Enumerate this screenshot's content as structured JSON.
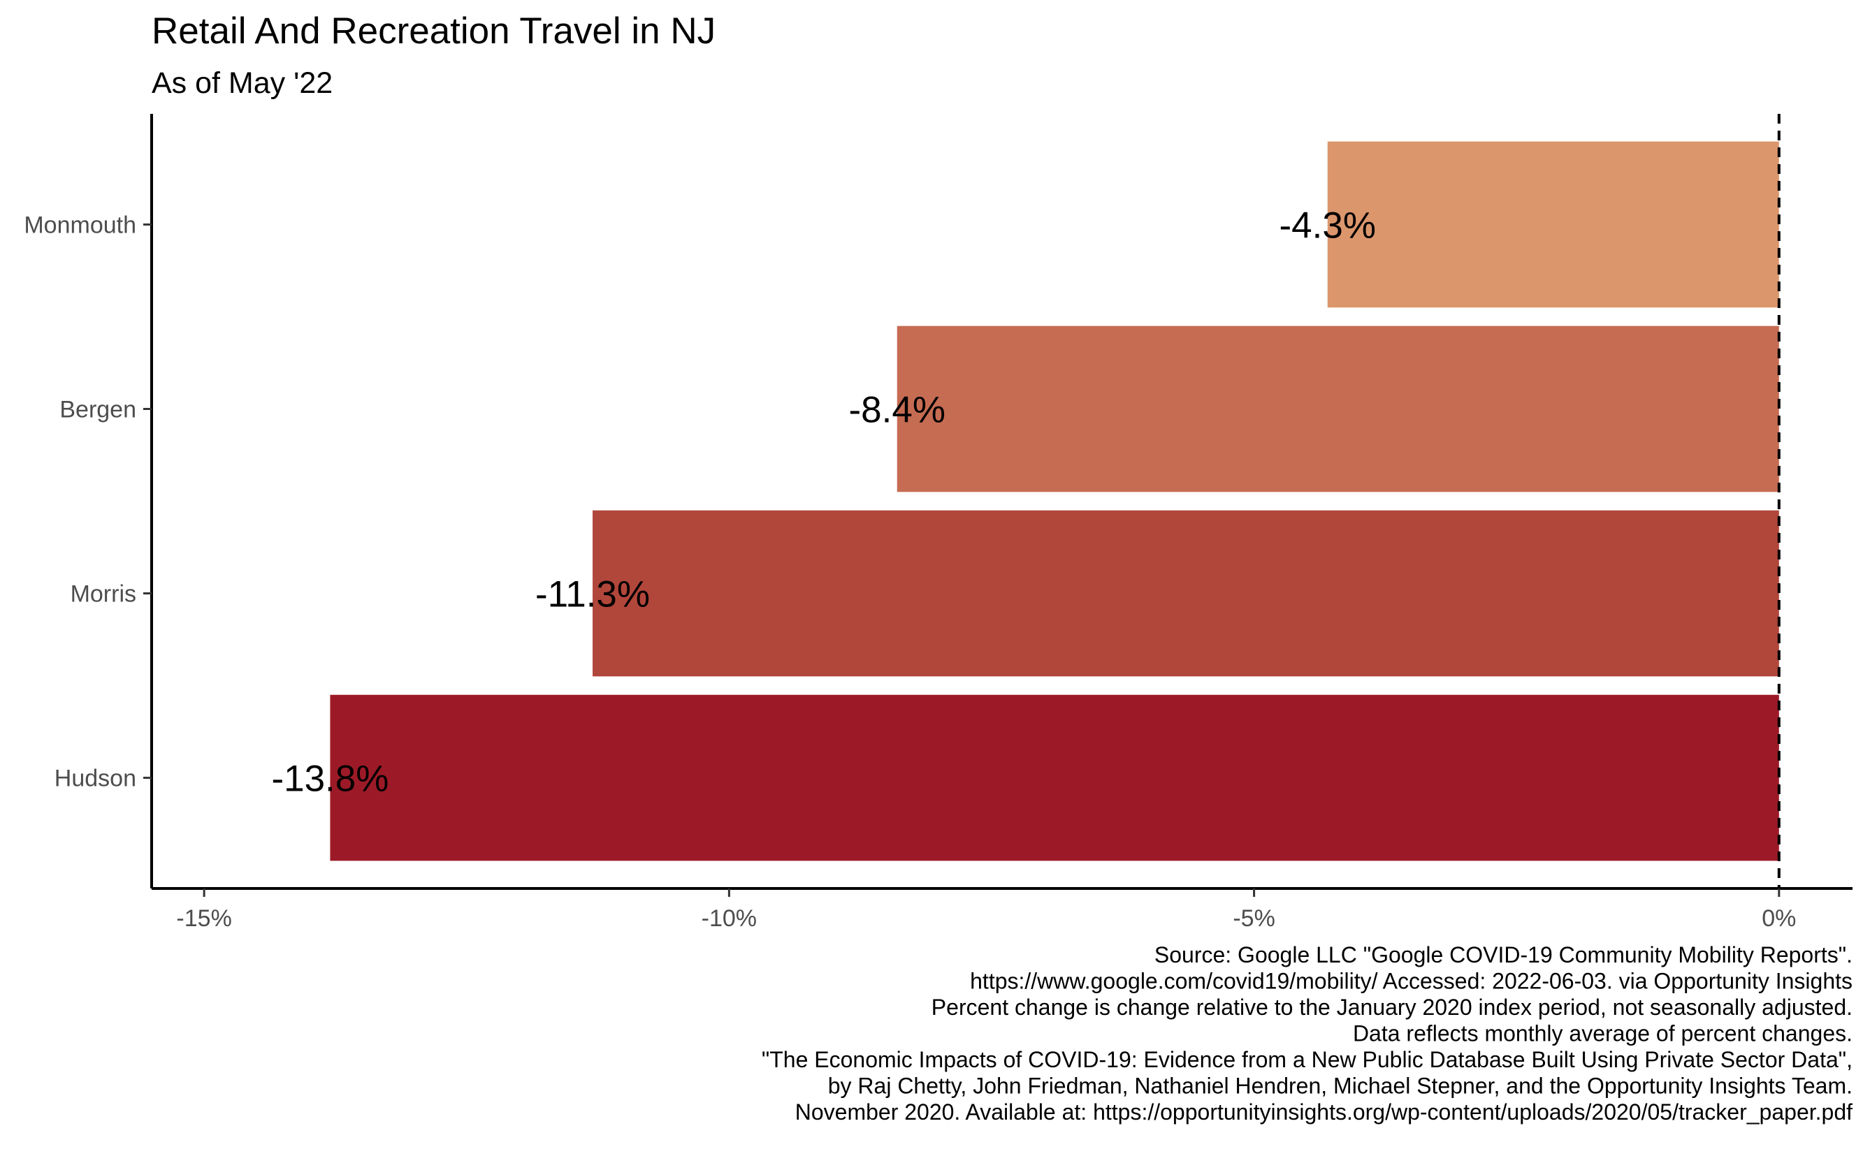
{
  "chart_data": {
    "type": "bar",
    "orientation": "horizontal",
    "title": "Retail And Recreation Travel in NJ",
    "subtitle": "As of May '22",
    "categories": [
      "Monmouth",
      "Bergen",
      "Morris",
      "Hudson"
    ],
    "values": [
      -4.3,
      -8.4,
      -11.3,
      -13.8
    ],
    "data_labels": [
      "-4.3%",
      "-8.4%",
      "-11.3%",
      "-13.8%"
    ],
    "colors": [
      "#DB966C",
      "#C66C53",
      "#B1463B",
      "#9C1A27"
    ],
    "xlim": [
      -15.5,
      0.7
    ],
    "x_ticks": [
      -15,
      -10,
      -5,
      0
    ],
    "x_tick_labels": [
      "-15%",
      "-10%",
      "-5%",
      "0%"
    ],
    "reference_line": {
      "x": 0,
      "style": "dashed"
    },
    "xlabel": "",
    "ylabel": "",
    "grid": false,
    "legend": "none",
    "caption": [
      "Source: Google LLC \"Google COVID-19 Community Mobility Reports\".",
      "https://www.google.com/covid19/mobility/ Accessed: 2022-06-03. via Opportunity Insights",
      "Percent change is change relative to the January 2020 index period, not seasonally adjusted.",
      "Data reflects monthly average of percent changes.",
      "\"The Economic Impacts of COVID-19: Evidence from a New Public Database Built Using Private Sector Data\",",
      "by Raj Chetty, John Friedman, Nathaniel Hendren, Michael Stepner, and the Opportunity Insights Team.",
      "November 2020. Available at: https://opportunityinsights.org/wp-content/uploads/2020/05/tracker_paper.pdf"
    ]
  }
}
